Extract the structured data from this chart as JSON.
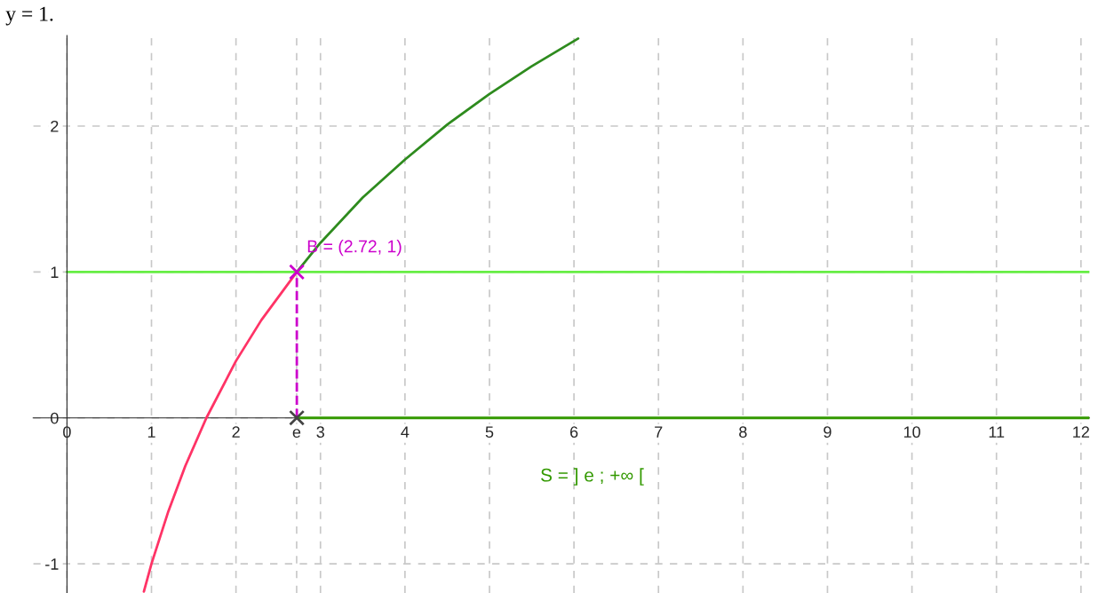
{
  "chart_data": {
    "type": "line",
    "series": [
      {
        "color": "#ff3366",
        "x": [
          0.91,
          1.0,
          1.2,
          1.4,
          1.65,
          2.0,
          2.3,
          2.72
        ],
        "values": [
          -1.19,
          -1.0,
          -0.64,
          -0.33,
          0.0,
          0.39,
          0.67,
          1.0
        ]
      },
      {
        "color": "#2e8b1e",
        "x": [
          2.72,
          3.0,
          3.5,
          4.0,
          4.5,
          5.0,
          5.5,
          6.05
        ],
        "values": [
          1.0,
          1.2,
          1.51,
          1.77,
          2.01,
          2.22,
          2.41,
          2.6
        ]
      },
      {
        "color": "#339900",
        "x": [
          2.72,
          12.1
        ],
        "values": [
          0,
          0
        ]
      },
      {
        "color": "#cc00cc",
        "line_style": "dashed",
        "x": [
          2.72,
          2.72
        ],
        "values": [
          0,
          1
        ]
      },
      {
        "type": "scatter",
        "color": "#cc00cc",
        "marker": "cross",
        "x": [
          2.72
        ],
        "values": [
          1
        ]
      },
      {
        "type": "scatter",
        "color": "#444444",
        "marker": "cross",
        "x": [
          2.72
        ],
        "values": [
          0
        ]
      }
    ],
    "ref_lines": [
      {
        "axis": "y",
        "value": 1,
        "color": "#66ee44"
      }
    ],
    "annotations": [
      "y = 1.",
      {
        "text": "B = (2.72, 1)",
        "x": 2.72,
        "y": 1
      },
      "S = ] e ; +∞ ["
    ],
    "xlim": [
      -0.4,
      12.1
    ],
    "ylim": [
      -1.2,
      2.62
    ],
    "xticks": [
      0,
      1,
      2,
      {
        "value": 2.718,
        "label": "e"
      },
      3,
      4,
      5,
      6,
      7,
      8,
      9,
      10,
      11,
      12
    ],
    "yticks": [
      -1,
      0,
      1,
      2
    ],
    "grid": true,
    "line_style": "solid",
    "marker": "none"
  }
}
